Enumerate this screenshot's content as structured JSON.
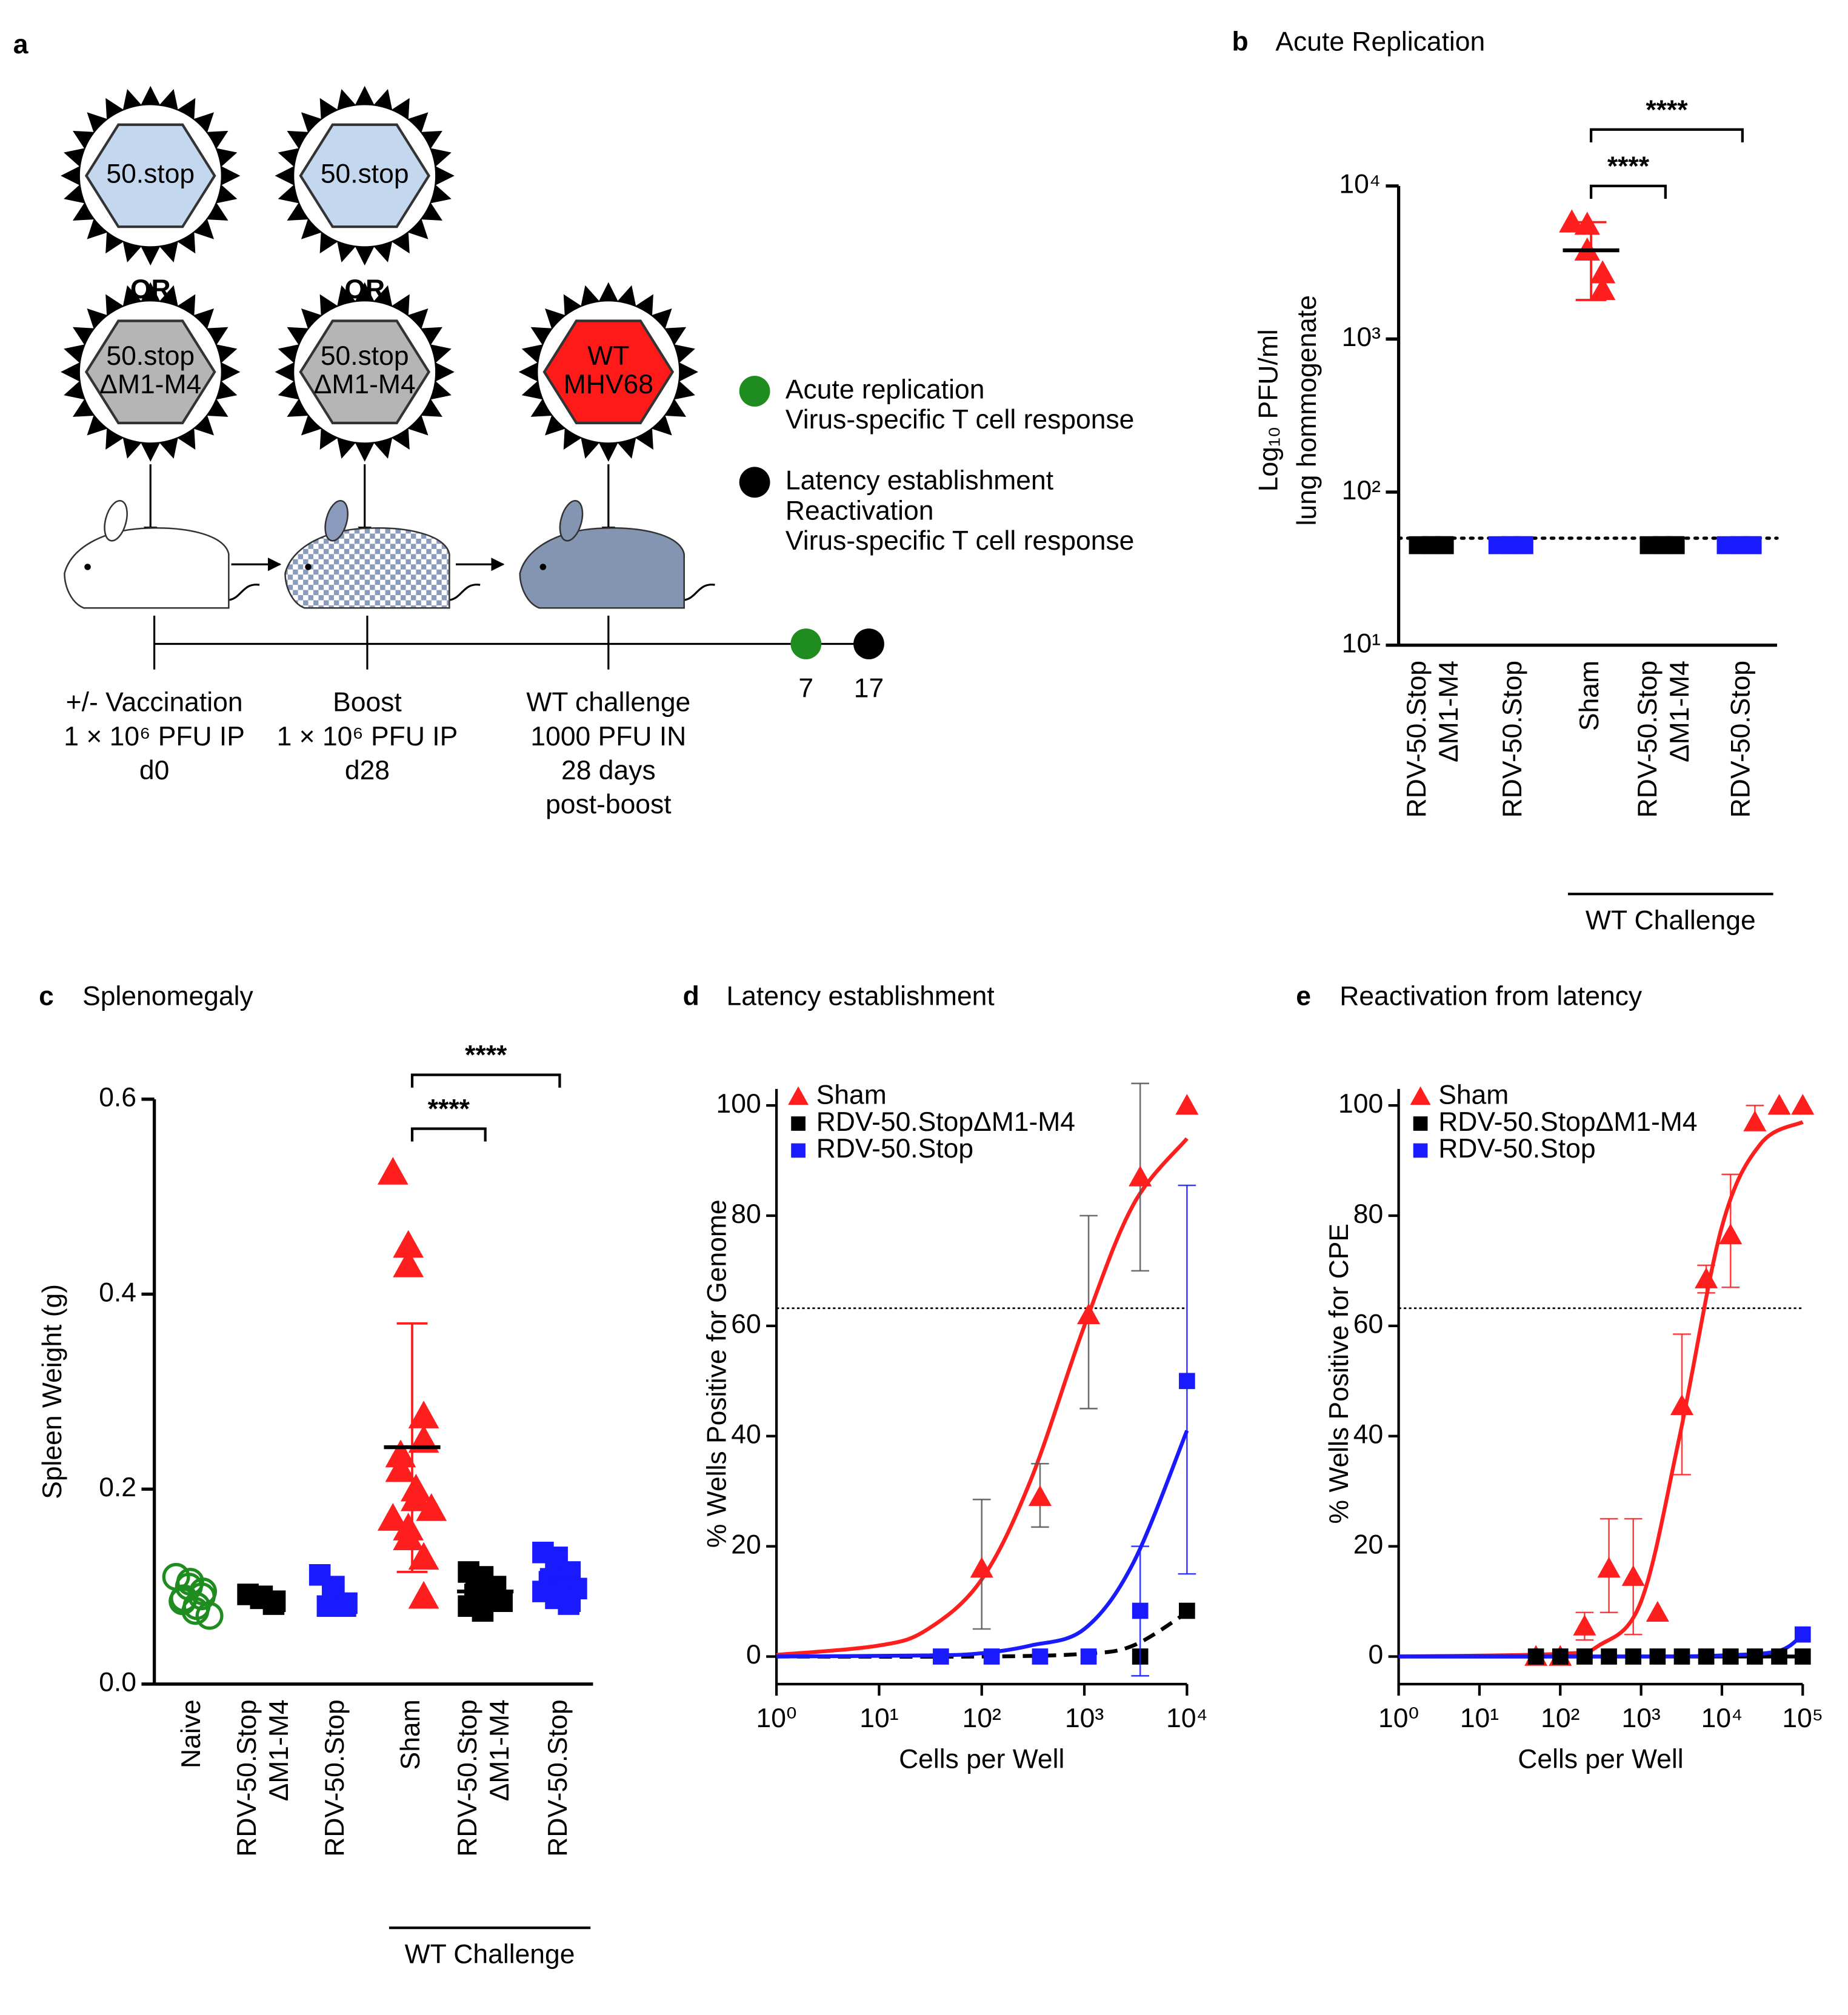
{
  "diagram": {
    "panel": "a",
    "vaccines": [
      [
        "50.stop"
      ],
      [
        "50.stop"
      ]
    ],
    "or_labels": [
      "OR",
      "OR"
    ],
    "deletion_vaccines": [
      [
        "50.stop",
        "ΔM1-M4"
      ],
      [
        "50.stop",
        "ΔM1-M4"
      ]
    ],
    "challenge_virus": [
      "WT",
      "MHV68"
    ],
    "legend": [
      {
        "color": "#1e8c1e",
        "lines": [
          "Acute replication",
          "Virus-specific T cell response"
        ]
      },
      {
        "color": "#000000",
        "lines": [
          "Latency establishment",
          "Reactivation",
          "Virus-specific T cell response"
        ]
      }
    ],
    "timeline": [
      {
        "lines": [
          "+/- Vaccination",
          "1 × 10⁶ PFU IP",
          "d0"
        ]
      },
      {
        "lines": [
          "Boost",
          "1 × 10⁶ PFU IP",
          "d28"
        ]
      },
      {
        "lines": [
          "WT challenge",
          "1000 PFU IN",
          "28 days",
          "post-boost"
        ]
      }
    ],
    "endpoints": [
      7,
      17
    ]
  },
  "chart_data": [
    {
      "type": "dot",
      "panel": "b",
      "title": "Acute Replication",
      "ylabel": [
        "Log₁₀ PFU/ml",
        "lung hommogenate"
      ],
      "log_y": true,
      "ylim": [
        10,
        10000
      ],
      "yticks": [
        {
          "value": 10,
          "label": "10¹"
        },
        {
          "value": 100,
          "label": "10²"
        },
        {
          "value": 1000,
          "label": "10³"
        },
        {
          "value": 10000,
          "label": "10⁴"
        }
      ],
      "categories": [
        [
          "RDV-50.Stop",
          "ΔM1-M4"
        ],
        [
          "RDV-50.Stop"
        ],
        [
          "Sham"
        ],
        [
          "RDV-50.Stop",
          "ΔM1-M4"
        ],
        [
          "RDV-50.Stop"
        ]
      ],
      "colors": [
        "#000000",
        "#1a1aff",
        "#ff1e1e",
        "#000000",
        "#1a1aff"
      ],
      "markers": [
        "square",
        "square",
        "triangle",
        "square",
        "square"
      ],
      "points": [
        [
          45,
          45,
          45,
          45,
          45
        ],
        [
          45,
          45,
          45,
          45,
          45
        ],
        [
          5800,
          5600,
          3800,
          2700,
          2100
        ],
        [
          45,
          45,
          45,
          45,
          45
        ],
        [
          45,
          45,
          45,
          45,
          45
        ]
      ],
      "mean": [
        null,
        null,
        3800,
        null,
        null
      ],
      "error_range": [
        null,
        null,
        [
          1800,
          5800
        ],
        null,
        null
      ],
      "limit_line": 50,
      "significance": [
        {
          "from": 2,
          "to": 3,
          "label": "****"
        },
        {
          "from": 2,
          "to": 4,
          "label": "****"
        }
      ],
      "group": {
        "label": "WT Challenge",
        "from": 2,
        "to": 4
      }
    },
    {
      "type": "dot",
      "panel": "c",
      "title": "Splenomegaly",
      "ylabel": [
        "Spleen Weight (g)"
      ],
      "log_y": false,
      "ylim": [
        0,
        0.6
      ],
      "yticks": [
        {
          "value": 0,
          "label": "0.0"
        },
        0.2,
        0.4,
        0.6
      ],
      "categories": [
        [
          "Naive"
        ],
        [
          "RDV-50.Stop",
          "ΔM1-M4"
        ],
        [
          "RDV-50.Stop"
        ],
        [
          "Sham"
        ],
        [
          "RDV-50.Stop",
          "ΔM1-M4"
        ],
        [
          "RDV-50.Stop"
        ]
      ],
      "colors": [
        "#1e8c1e",
        "#000000",
        "#1a1aff",
        "#ff1e1e",
        "#000000",
        "#1a1aff"
      ],
      "markers": [
        "circle-open",
        "square",
        "square",
        "triangle",
        "square",
        "square"
      ],
      "points": [
        [
          0.11,
          0.105,
          0.1,
          0.095,
          0.09,
          0.088,
          0.085,
          0.08,
          0.075,
          0.07
        ],
        [
          0.092,
          0.09,
          0.088,
          0.085,
          0.082
        ],
        [
          0.112,
          0.1,
          0.09,
          0.083,
          0.08,
          0.08
        ],
        [
          0.525,
          0.45,
          0.43,
          0.275,
          0.25,
          0.235,
          0.22,
          0.2,
          0.19,
          0.18,
          0.17,
          0.16,
          0.15,
          0.13,
          0.09
        ],
        [
          0.115,
          0.11,
          0.105,
          0.1,
          0.098,
          0.095,
          0.092,
          0.09,
          0.088,
          0.085,
          0.08,
          0.075
        ],
        [
          0.135,
          0.13,
          0.12,
          0.115,
          0.11,
          0.108,
          0.105,
          0.1,
          0.1,
          0.098,
          0.095,
          0.09,
          0.088,
          0.085,
          0.082
        ]
      ],
      "mean": [
        null,
        null,
        null,
        0.243,
        0.095,
        null
      ],
      "error_range": [
        null,
        null,
        null,
        [
          0.115,
          0.37
        ],
        null,
        null
      ],
      "significance": [
        {
          "from": 3,
          "to": 4,
          "label": "****"
        },
        {
          "from": 3,
          "to": 5,
          "label": "****"
        }
      ],
      "group": {
        "label": "WT Challenge",
        "from": 3,
        "to": 5
      }
    },
    {
      "type": "scatter",
      "panel": "d",
      "title": "Latency establishment",
      "xlabel": "Cells per Well",
      "ylabel": "% Wells Positive for Genome",
      "log_x": true,
      "xlim": [
        1,
        10000
      ],
      "xticks": [
        {
          "value": 1,
          "label": "10⁰"
        },
        {
          "value": 10,
          "label": "10¹"
        },
        {
          "value": 100,
          "label": "10²"
        },
        {
          "value": 1000,
          "label": "10³"
        },
        {
          "value": 10000,
          "label": "10⁴"
        }
      ],
      "ylim": [
        -5,
        103
      ],
      "yticks": [
        0,
        20,
        40,
        60,
        80,
        100
      ],
      "legend": "upper left",
      "threshold": 63.2,
      "series": [
        {
          "name": "Sham",
          "color": "#ff1e1e",
          "marker": "triangle",
          "x": [
            100,
            370,
            1100,
            3500,
            10000
          ],
          "values": [
            16,
            29,
            62,
            87,
            100
          ],
          "errors": [
            [
              5,
              28.5
            ],
            [
              23.5,
              35
            ],
            [
              45,
              80
            ],
            [
              70,
              104
            ],
            null
          ],
          "fit": {
            "x": [
              1,
              10,
              30,
              100,
              300,
              1000,
              3000,
              10000
            ],
            "y": [
              0.3,
              2,
              5,
              14,
              32,
              60,
              82,
              94
            ],
            "line_style": "solid"
          }
        },
        {
          "name": "RDV-50.StopΔM1-M4",
          "color": "#000000",
          "marker": "square",
          "x": [
            3500,
            10000
          ],
          "values": [
            0,
            8.3
          ],
          "errors": [
            null,
            null
          ],
          "fit": {
            "x": [
              1,
              100,
              1000,
              3000,
              10000
            ],
            "y": [
              0,
              0,
              0.5,
              2,
              8
            ],
            "line_style": "dashed"
          }
        },
        {
          "name": "RDV-50.Stop",
          "color": "#1a1aff",
          "marker": "square",
          "x": [
            40,
            125,
            370,
            1100,
            3500,
            10000
          ],
          "values": [
            0,
            0,
            0,
            0,
            8.3,
            50
          ],
          "errors": [
            null,
            null,
            null,
            null,
            [
              -3.5,
              20
            ],
            [
              15,
              85.5
            ]
          ],
          "fit": {
            "x": [
              1,
              30,
              100,
              300,
              1000,
              3000,
              10000
            ],
            "y": [
              0,
              0.2,
              0.6,
              2,
              5,
              17,
              41
            ],
            "line_style": "solid"
          }
        }
      ]
    },
    {
      "type": "scatter",
      "panel": "e",
      "title": "Reactivation from latency",
      "xlabel": "Cells per Well",
      "ylabel": "% Wells Positive for CPE",
      "log_x": true,
      "xlim": [
        1,
        100000
      ],
      "xticks": [
        {
          "value": 1,
          "label": "10⁰"
        },
        {
          "value": 10,
          "label": "10¹"
        },
        {
          "value": 100,
          "label": "10²"
        },
        {
          "value": 1000,
          "label": "10³"
        },
        {
          "value": 10000,
          "label": "10⁴"
        },
        {
          "value": 100000,
          "label": "10⁵"
        }
      ],
      "ylim": [
        -5,
        103
      ],
      "yticks": [
        0,
        20,
        40,
        60,
        80,
        100
      ],
      "legend": "upper left",
      "threshold": 63.2,
      "series": [
        {
          "name": "Sham",
          "color": "#ff1e1e",
          "marker": "triangle",
          "x": [
            50,
            100,
            200,
            400,
            800,
            1600,
            3200,
            6400,
            12800,
            25600,
            51200,
            100000
          ],
          "values": [
            0,
            0,
            5.5,
            16,
            14.5,
            8,
            45.5,
            68.5,
            76.5,
            97,
            100,
            100
          ],
          "errors": [
            null,
            null,
            [
              3,
              8
            ],
            [
              8,
              25
            ],
            [
              4,
              25
            ],
            null,
            [
              33,
              58.5
            ],
            [
              66,
              71
            ],
            [
              67,
              87.5
            ],
            [
              96,
              100
            ],
            null,
            null
          ],
          "fit": {
            "x": [
              1,
              100,
              300,
              1000,
              3000,
              10000,
              30000,
              100000
            ],
            "y": [
              0,
              0.5,
              2,
              10,
              40,
              78,
              93,
              97
            ],
            "line_style": "solid"
          }
        },
        {
          "name": "RDV-50.StopΔM1-M4",
          "color": "#000000",
          "marker": "square",
          "x": [
            50,
            100,
            200,
            400,
            800,
            1600,
            3200,
            6400,
            12800,
            25600,
            51200,
            100000
          ],
          "values": [
            0,
            0,
            0,
            0,
            0,
            0,
            0,
            0,
            0,
            0,
            0,
            0
          ],
          "errors": [
            null,
            null,
            null,
            null,
            null,
            null,
            null,
            null,
            null,
            null,
            null,
            null
          ],
          "fit": {
            "x": [
              1,
              100000
            ],
            "y": [
              0,
              0
            ],
            "line_style": "solid"
          }
        },
        {
          "name": "RDV-50.Stop",
          "color": "#1a1aff",
          "marker": "square",
          "x": [
            100000
          ],
          "values": [
            4
          ],
          "errors": [
            null
          ],
          "fit": {
            "x": [
              1,
              1000,
              10000,
              50000,
              100000
            ],
            "y": [
              0,
              0,
              0.2,
              1,
              4
            ],
            "line_style": "solid"
          }
        }
      ]
    }
  ]
}
